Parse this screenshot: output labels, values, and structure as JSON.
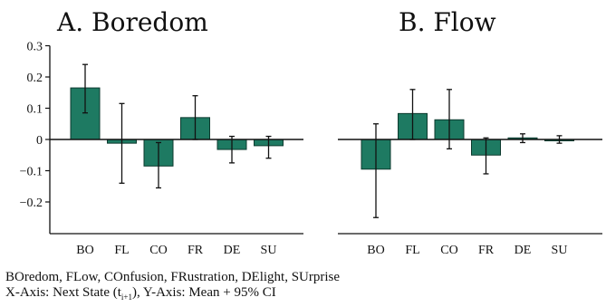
{
  "chart_data": [
    {
      "type": "bar",
      "title": "A. Boredom",
      "categories": [
        "BO",
        "FL",
        "CO",
        "FR",
        "DE",
        "SU"
      ],
      "values": [
        0.165,
        -0.012,
        -0.085,
        0.07,
        -0.032,
        -0.02
      ],
      "ci_lower": [
        0.085,
        -0.14,
        -0.155,
        0.0,
        -0.075,
        -0.06
      ],
      "ci_upper": [
        0.24,
        0.115,
        -0.01,
        0.14,
        0.01,
        0.01
      ],
      "ylim": [
        -0.3,
        0.3
      ],
      "yticks": [
        0.3,
        0.2,
        0.1,
        0,
        -0.1,
        -0.2
      ],
      "ytick_labels": [
        "0.3",
        "0.2",
        "0.1",
        "0",
        "−0.1",
        "−0.2"
      ],
      "bar_color": "#1e7a62",
      "grid": false
    },
    {
      "type": "bar",
      "title": "B. Flow",
      "categories": [
        "BO",
        "FL",
        "CO",
        "FR",
        "DE",
        "SU"
      ],
      "values": [
        -0.095,
        0.083,
        0.063,
        -0.05,
        0.005,
        0.0
      ],
      "ci_lower": [
        -0.25,
        0.0,
        -0.03,
        -0.11,
        -0.01,
        -0.012
      ],
      "ci_upper": [
        0.05,
        0.16,
        0.16,
        0.005,
        0.018,
        0.012
      ],
      "ylim": [
        -0.3,
        0.3
      ],
      "bar_color": "#1e7a62",
      "grid": false
    }
  ],
  "caption": {
    "line1": "BOredom, FLow, COnfusion, FRustration, DElight, SUrprise",
    "line2_prefix": "X-Axis: Next State (t",
    "line2_sub": "i+1",
    "line2_suffix": "), Y-Axis: Mean + 95% CI"
  }
}
